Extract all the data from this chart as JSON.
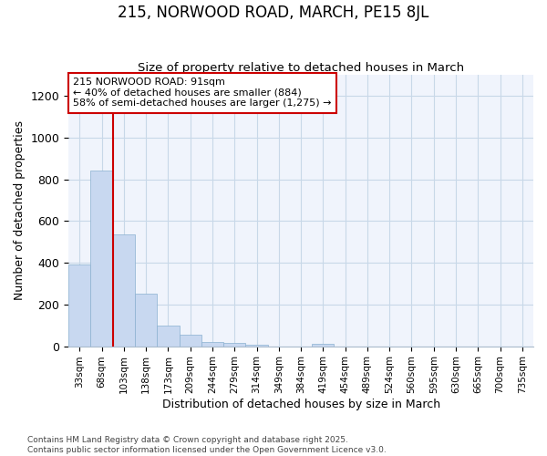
{
  "title1": "215, NORWOOD ROAD, MARCH, PE15 8JL",
  "title2": "Size of property relative to detached houses in March",
  "xlabel": "Distribution of detached houses by size in March",
  "ylabel": "Number of detached properties",
  "categories": [
    "33sqm",
    "68sqm",
    "103sqm",
    "138sqm",
    "173sqm",
    "209sqm",
    "244sqm",
    "279sqm",
    "314sqm",
    "349sqm",
    "384sqm",
    "419sqm",
    "454sqm",
    "489sqm",
    "524sqm",
    "560sqm",
    "595sqm",
    "630sqm",
    "665sqm",
    "700sqm",
    "735sqm"
  ],
  "values": [
    390,
    840,
    535,
    250,
    100,
    55,
    20,
    15,
    5,
    0,
    0,
    10,
    0,
    0,
    0,
    0,
    0,
    0,
    0,
    0,
    0
  ],
  "bar_color": "#c8d8f0",
  "bar_edge_color": "#8ab0d0",
  "grid_color": "#c8d8e8",
  "bg_color": "#ffffff",
  "plot_bg_color": "#f0f4fc",
  "vline_x": 2.0,
  "vline_color": "#cc0000",
  "annotation_text": "215 NORWOOD ROAD: 91sqm\n← 40% of detached houses are smaller (884)\n58% of semi-detached houses are larger (1,275) →",
  "annotation_box_color": "#ffffff",
  "annotation_border_color": "#cc0000",
  "ylim": [
    0,
    1300
  ],
  "yticks": [
    0,
    200,
    400,
    600,
    800,
    1000,
    1200
  ],
  "footer1": "Contains HM Land Registry data © Crown copyright and database right 2025.",
  "footer2": "Contains public sector information licensed under the Open Government Licence v3.0."
}
